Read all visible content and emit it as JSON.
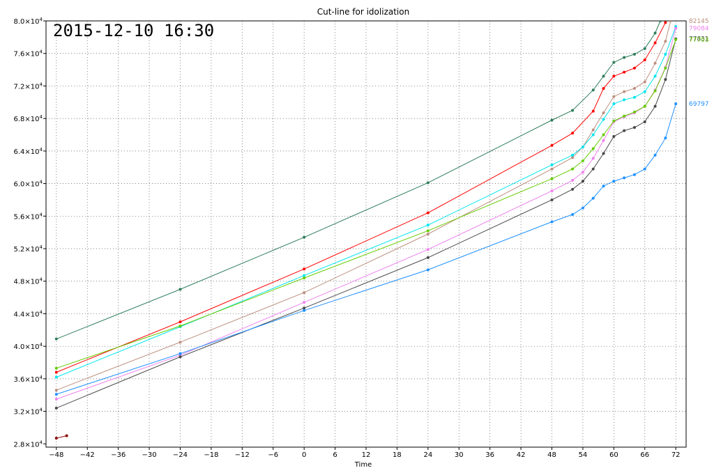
{
  "chart_data": {
    "type": "line",
    "title": "Cut-line for idolization",
    "timestamp": "2015-12-10 16:30",
    "xlabel": "Time",
    "ylabel": "",
    "grid": true,
    "x_ticks": [
      -48,
      -42,
      -36,
      -30,
      -24,
      -18,
      -12,
      -6,
      0,
      6,
      12,
      18,
      24,
      30,
      36,
      42,
      48,
      54,
      60,
      66,
      72
    ],
    "x_tick_labels": [
      "−48",
      "−42",
      "−36",
      "−30",
      "−24",
      "−18",
      "−12",
      "−6",
      "0",
      "6",
      "12",
      "18",
      "24",
      "30",
      "36",
      "42",
      "48",
      "54",
      "60",
      "66",
      "72"
    ],
    "y_ticks": [
      28000,
      32000,
      36000,
      40000,
      44000,
      48000,
      52000,
      56000,
      60000,
      64000,
      68000,
      72000,
      76000,
      80000
    ],
    "y_tick_labels": [
      {
        "m": "2.8×10",
        "e": "4"
      },
      {
        "m": "3.2×10",
        "e": "4"
      },
      {
        "m": "3.6×10",
        "e": "4"
      },
      {
        "m": "4.0×10",
        "e": "4"
      },
      {
        "m": "4.4×10",
        "e": "4"
      },
      {
        "m": "4.8×10",
        "e": "4"
      },
      {
        "m": "5.2×10",
        "e": "4"
      },
      {
        "m": "5.6×10",
        "e": "4"
      },
      {
        "m": "6.0×10",
        "e": "4"
      },
      {
        "m": "6.4×10",
        "e": "4"
      },
      {
        "m": "6.8×10",
        "e": "4"
      },
      {
        "m": "7.2×10",
        "e": "4"
      },
      {
        "m": "7.6×10",
        "e": "4"
      },
      {
        "m": "8.0×10",
        "e": "4"
      }
    ],
    "xlim": [
      -50,
      74
    ],
    "ylim": [
      27600,
      80000
    ],
    "series": [
      {
        "color": "#2e7d5b",
        "end_label": "",
        "points": [
          [
            -48,
            40900
          ],
          [
            -24,
            47000
          ],
          [
            0,
            53400
          ],
          [
            24,
            60100
          ],
          [
            48,
            67800
          ],
          [
            52,
            69000
          ],
          [
            56,
            71500
          ],
          [
            58,
            73200
          ],
          [
            60,
            74900
          ],
          [
            62,
            75500
          ],
          [
            64,
            75900
          ],
          [
            66,
            76600
          ],
          [
            68,
            78500
          ],
          [
            69,
            80000
          ]
        ]
      },
      {
        "color": "#ff0000",
        "end_label": "",
        "points": [
          [
            -48,
            36800
          ],
          [
            -24,
            43000
          ],
          [
            0,
            49500
          ],
          [
            24,
            56400
          ],
          [
            48,
            64700
          ],
          [
            52,
            66200
          ],
          [
            56,
            68900
          ],
          [
            58,
            71700
          ],
          [
            60,
            73200
          ],
          [
            62,
            73700
          ],
          [
            64,
            74200
          ],
          [
            66,
            75200
          ],
          [
            68,
            77300
          ],
          [
            70,
            79800
          ]
        ]
      },
      {
        "color": "#bc8f7f",
        "end_label": "82145",
        "points": [
          [
            -48,
            34600
          ],
          [
            -24,
            40500
          ],
          [
            0,
            46600
          ],
          [
            24,
            53800
          ],
          [
            48,
            61800
          ],
          [
            52,
            63200
          ],
          [
            54,
            64500
          ],
          [
            56,
            66600
          ],
          [
            58,
            68700
          ],
          [
            60,
            70700
          ],
          [
            62,
            71300
          ],
          [
            64,
            71700
          ],
          [
            66,
            72500
          ],
          [
            68,
            74800
          ],
          [
            70,
            77500
          ],
          [
            71,
            80000
          ]
        ]
      },
      {
        "color": "#00e5ee",
        "end_label": "",
        "points": [
          [
            -48,
            36200
          ],
          [
            -24,
            42400
          ],
          [
            0,
            48700
          ],
          [
            24,
            54900
          ],
          [
            48,
            62300
          ],
          [
            52,
            63500
          ],
          [
            54,
            64500
          ],
          [
            56,
            66000
          ],
          [
            58,
            67900
          ],
          [
            60,
            69800
          ],
          [
            62,
            70300
          ],
          [
            64,
            70600
          ],
          [
            66,
            71300
          ],
          [
            68,
            73200
          ],
          [
            70,
            75900
          ],
          [
            72,
            79300
          ]
        ]
      },
      {
        "color": "#ee82ee",
        "end_label": "79084",
        "points": [
          [
            -48,
            33500
          ],
          [
            -24,
            38900
          ],
          [
            0,
            45400
          ],
          [
            24,
            51900
          ],
          [
            48,
            59100
          ],
          [
            52,
            60400
          ],
          [
            54,
            61400
          ],
          [
            56,
            63100
          ],
          [
            58,
            65300
          ],
          [
            60,
            67600
          ],
          [
            62,
            68200
          ],
          [
            64,
            68700
          ],
          [
            66,
            69500
          ],
          [
            68,
            71500
          ],
          [
            70,
            74300
          ],
          [
            72,
            79100
          ]
        ]
      },
      {
        "color": "#474747",
        "end_label": "77831",
        "points": [
          [
            -48,
            32400
          ],
          [
            -24,
            38700
          ],
          [
            0,
            44700
          ],
          [
            24,
            50900
          ],
          [
            48,
            58000
          ],
          [
            52,
            59300
          ],
          [
            54,
            60300
          ],
          [
            56,
            61800
          ],
          [
            58,
            63700
          ],
          [
            60,
            65800
          ],
          [
            62,
            66500
          ],
          [
            64,
            66900
          ],
          [
            66,
            67600
          ],
          [
            68,
            69500
          ],
          [
            70,
            72800
          ],
          [
            72,
            77800
          ]
        ]
      },
      {
        "color": "#66cc00",
        "end_label": "77703",
        "points": [
          [
            -48,
            37300
          ],
          [
            -24,
            42500
          ],
          [
            0,
            48400
          ],
          [
            24,
            54200
          ],
          [
            48,
            60600
          ],
          [
            52,
            61800
          ],
          [
            54,
            62800
          ],
          [
            56,
            64300
          ],
          [
            58,
            66000
          ],
          [
            60,
            67700
          ],
          [
            62,
            68300
          ],
          [
            64,
            68800
          ],
          [
            66,
            69500
          ],
          [
            68,
            71400
          ],
          [
            70,
            74200
          ],
          [
            72,
            77700
          ]
        ]
      },
      {
        "color": "#1e90ff",
        "end_label": "69797",
        "points": [
          [
            -48,
            34100
          ],
          [
            -24,
            39100
          ],
          [
            0,
            44400
          ],
          [
            24,
            49400
          ],
          [
            48,
            55300
          ],
          [
            52,
            56200
          ],
          [
            54,
            57000
          ],
          [
            56,
            58200
          ],
          [
            58,
            59700
          ],
          [
            60,
            60300
          ],
          [
            62,
            60700
          ],
          [
            64,
            61100
          ],
          [
            66,
            61800
          ],
          [
            68,
            63500
          ],
          [
            70,
            65600
          ],
          [
            72,
            69800
          ]
        ]
      },
      {
        "color": "#8b0000",
        "end_label": "",
        "points": [
          [
            -48,
            28700
          ],
          [
            -46,
            29000
          ]
        ]
      }
    ]
  }
}
